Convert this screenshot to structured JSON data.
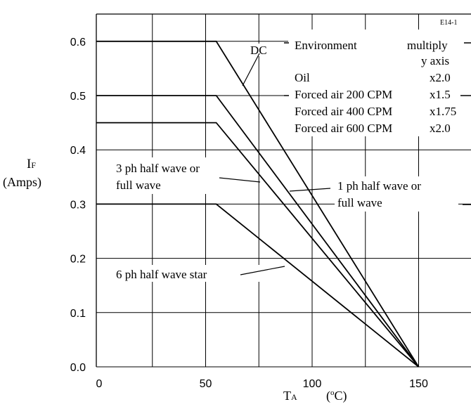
{
  "chart_data": {
    "type": "line",
    "figure_id": "E14-1",
    "xlabel": "T",
    "xlabel_sub": "A",
    "xunit_pre": "(",
    "xunit_deg": "o",
    "xunit_post": "C)",
    "ylabel": "I",
    "ylabel_sub": "F",
    "yunit": "(Amps)",
    "xlim": [
      0,
      175
    ],
    "ylim": [
      0,
      0.65
    ],
    "xticks": [
      0,
      50,
      100,
      150
    ],
    "xgrid": [
      0,
      25,
      50,
      75,
      100,
      125,
      150,
      175
    ],
    "yticks": [
      0.0,
      0.1,
      0.2,
      0.3,
      0.4,
      0.5,
      0.6
    ],
    "ytick_labels": [
      "0.0",
      "0.1",
      "0.2",
      "0.3",
      "0.4",
      "0.5",
      "0.6"
    ],
    "grid": true,
    "series": [
      {
        "name": "DC",
        "x": [
          0,
          55,
          150
        ],
        "y": [
          0.6,
          0.6,
          0.0
        ]
      },
      {
        "name": "1 ph half wave or full wave",
        "x": [
          0,
          55,
          150
        ],
        "y": [
          0.5,
          0.5,
          0.0
        ]
      },
      {
        "name": "3 ph half wave or full wave",
        "x": [
          0,
          55,
          150
        ],
        "y": [
          0.45,
          0.45,
          0.0
        ]
      },
      {
        "name": "6 ph half wave star",
        "x": [
          0,
          55,
          150
        ],
        "y": [
          0.3,
          0.3,
          0.0
        ]
      }
    ],
    "annotations": {
      "dc": "DC",
      "one_ph_1": "1 ph half wave or",
      "one_ph_2": "full wave",
      "three_ph_1": "3 ph half wave or",
      "three_ph_2": "full wave",
      "six_ph": "6 ph half wave star"
    },
    "environment_table": {
      "header_env": "Environment",
      "header_mult_1": "multiply",
      "header_mult_2": "y axis",
      "rows": [
        {
          "env": "Oil",
          "mult": "x2.0"
        },
        {
          "env": "Forced air 200 CPM",
          "mult": "x1.5"
        },
        {
          "env": "Forced air 400 CPM",
          "mult": "x1.75"
        },
        {
          "env": "Forced air 600 CPM",
          "mult": "x2.0"
        }
      ]
    }
  }
}
